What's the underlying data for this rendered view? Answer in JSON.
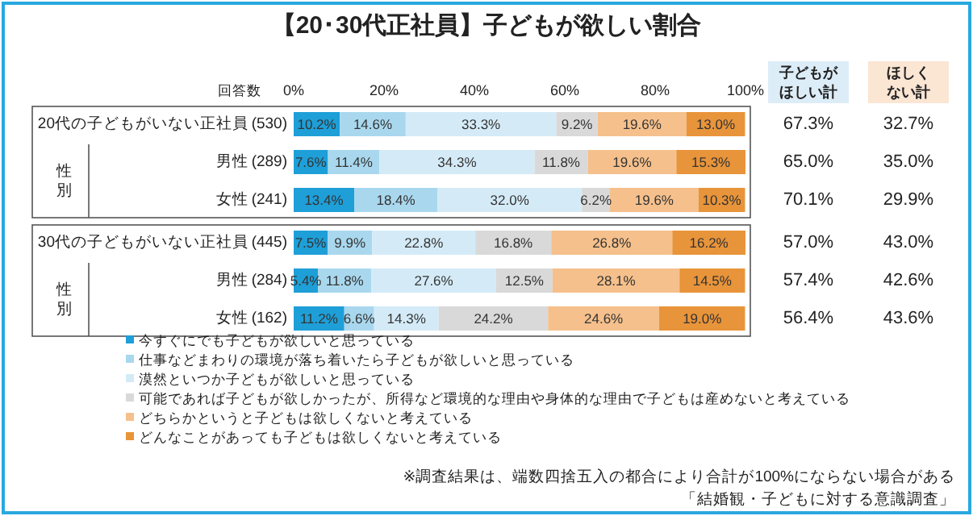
{
  "chart_data": {
    "type": "bar",
    "orientation": "horizontal",
    "stacked": true,
    "title": "【20･30代正社員】子どもが欲しい割合",
    "categories": [
      "20代の子どもがいない正社員",
      "男性",
      "女性",
      "30代の子どもがいない正社員",
      "男性",
      "女性"
    ],
    "xlim": [
      0,
      100
    ],
    "xticks": [
      {
        "value": 0,
        "label": "0%"
      },
      {
        "value": 20,
        "label": "20%"
      },
      {
        "value": 40,
        "label": "40%"
      },
      {
        "value": 60,
        "label": "60%"
      },
      {
        "value": 80,
        "label": "80%"
      },
      {
        "value": 100,
        "label": "100%"
      }
    ],
    "legend": "bottom",
    "series": [
      {
        "name": "今すぐにでも子どもが欲しいと思っている",
        "color": "#1e9fd8",
        "values": [
          10.2,
          7.6,
          13.4,
          7.5,
          5.4,
          11.2
        ],
        "value_labels": [
          "10.2%",
          "7.6%",
          "13.4%",
          "7.5%",
          "5.4%",
          "11.2%"
        ]
      },
      {
        "name": "仕事などまわりの環境が落ち着いたら子どもが欲しいと思っている",
        "color": "#a9d8ee",
        "values": [
          14.6,
          11.4,
          18.4,
          9.9,
          11.8,
          6.6
        ],
        "value_labels": [
          "14.6%",
          "11.4%",
          "18.4%",
          "9.9%",
          "11.8%",
          "6.6%"
        ]
      },
      {
        "name": "漠然といつか子どもが欲しいと思っている",
        "color": "#d4ebf7",
        "values": [
          33.3,
          34.3,
          32.0,
          22.8,
          27.6,
          14.3
        ],
        "value_labels": [
          "33.3%",
          "34.3%",
          "32.0%",
          "22.8%",
          "27.6%",
          "14.3%"
        ]
      },
      {
        "name": "可能であれば子どもが欲しかったが、所得など環境的な理由や身体的な理由で子どもは産めないと考えている",
        "color": "#d9d9d9",
        "values": [
          9.2,
          11.8,
          6.2,
          16.8,
          12.5,
          24.2
        ],
        "value_labels": [
          "9.2%",
          "11.8%",
          "6.2%",
          "16.8%",
          "12.5%",
          "24.2%"
        ]
      },
      {
        "name": "どちらかというと子どもは欲しくないと考えている",
        "color": "#f5c08c",
        "values": [
          19.6,
          19.6,
          19.6,
          26.8,
          28.1,
          24.6
        ],
        "value_labels": [
          "19.6%",
          "19.6%",
          "19.6%",
          "26.8%",
          "28.1%",
          "24.6%"
        ]
      },
      {
        "name": "どんなことがあっても子どもは欲しくないと考えている",
        "color": "#e8943a",
        "values": [
          13.0,
          15.3,
          10.3,
          16.2,
          14.5,
          19.0
        ],
        "value_labels": [
          "13.0%",
          "15.3%",
          "10.3%",
          "16.2%",
          "14.5%",
          "19.0%"
        ]
      }
    ],
    "annotations": [
      "回答数",
      "性",
      "別",
      "性",
      "別",
      "(530)",
      "(289)",
      "(241)",
      "(445)",
      "(284)",
      "(162)",
      "子どもが",
      "ほしい計",
      "ほしく",
      "ない計",
      "67.3%",
      "65.0%",
      "70.1%",
      "57.0%",
      "57.4%",
      "56.4%",
      "32.7%",
      "35.0%",
      "29.9%",
      "43.0%",
      "42.6%",
      "43.6%",
      "※調査結果は、端数四捨五入の都合により合計が100%にならない場合がある",
      "「結婚観・子どもに対する意識調査」"
    ]
  }
}
